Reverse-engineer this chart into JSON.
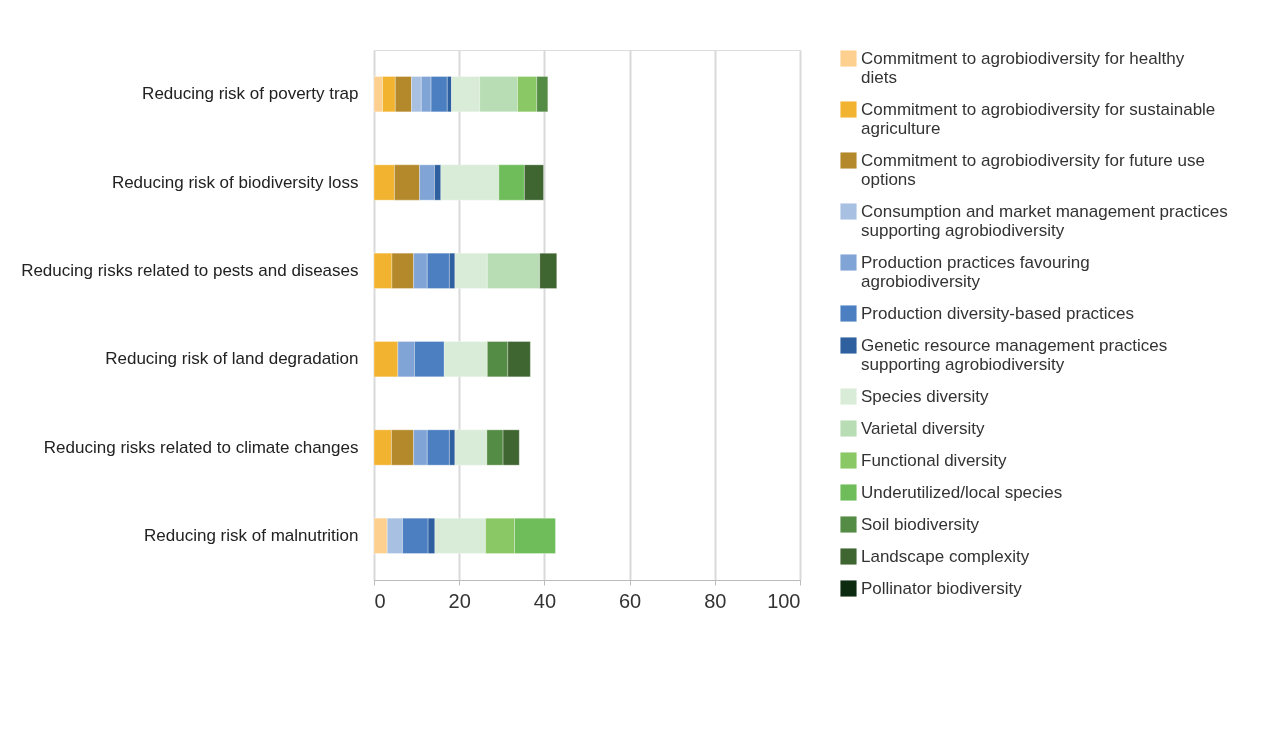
{
  "chart_data": {
    "type": "bar",
    "orientation": "horizontal",
    "stacked": true,
    "categories": [
      "Reducing risk of poverty trap",
      "Reducing risk of biodiversity loss",
      "Reducing risks related to pests and diseases",
      "Reducing risk of land degradation",
      "Reducing risks related to climate changes",
      "Reducing risk of malnutrition"
    ],
    "series": [
      {
        "name": "Commitment to agrobiodiversity for healthy diets",
        "color": "#fdd08f",
        "values": [
          2.0,
          null,
          null,
          null,
          null,
          3.1
        ]
      },
      {
        "name": "Commitment to agrobiodiversity for sustainable agriculture",
        "color": "#f2b430",
        "values": [
          3.0,
          4.8,
          4.2,
          5.6,
          4.1,
          null
        ]
      },
      {
        "name": "Commitment to agrobiodiversity for future use options",
        "color": "#b4892b",
        "values": [
          3.8,
          5.9,
          5.1,
          null,
          5.2,
          null
        ]
      },
      {
        "name": "Consumption and market management practices supporting agrobiodiversity",
        "color": "#a8c0e2",
        "values": [
          2.3,
          null,
          null,
          null,
          null,
          3.6
        ]
      },
      {
        "name": "Production practices favouring agrobiodiversity",
        "color": "#80a4d6",
        "values": [
          2.3,
          3.5,
          3.2,
          3.9,
          3.2,
          null
        ]
      },
      {
        "name": "Production diversity-based practices",
        "color": "#4b7fc1",
        "values": [
          3.8,
          null,
          5.2,
          7.0,
          5.2,
          6.0
        ]
      },
      {
        "name": "Genetic resource management practices supporting agrobiodiversity",
        "color": "#2e5f9e",
        "values": [
          1.0,
          1.5,
          1.3,
          null,
          1.3,
          1.6
        ]
      },
      {
        "name": "Species diversity",
        "color": "#d9ecd7",
        "values": [
          6.6,
          13.6,
          7.6,
          10.1,
          7.5,
          11.9
        ]
      },
      {
        "name": "Varietal diversity",
        "color": "#b8ddb5",
        "values": [
          8.9,
          null,
          12.3,
          null,
          null,
          null
        ]
      },
      {
        "name": "Functional diversity",
        "color": "#8ac765",
        "values": [
          4.5,
          null,
          null,
          null,
          null,
          6.8
        ]
      },
      {
        "name": "Underutilized/local species",
        "color": "#6fbd5a",
        "values": [
          null,
          6.0,
          null,
          null,
          null,
          9.6
        ]
      },
      {
        "name": "Soil biodiversity",
        "color": "#558c45",
        "values": [
          2.6,
          null,
          null,
          4.8,
          3.8,
          null
        ]
      },
      {
        "name": "Landscape complexity",
        "color": "#3f6531",
        "values": [
          null,
          4.5,
          4.0,
          5.3,
          3.8,
          null
        ]
      },
      {
        "name": "Pollinator biodiversity",
        "color": "#0b2a10",
        "values": [
          null,
          null,
          null,
          null,
          null,
          null
        ]
      }
    ],
    "xlim": [
      0,
      100
    ],
    "xticks": [
      0,
      20,
      40,
      60,
      80,
      100
    ],
    "grid": "x",
    "legend": "right"
  }
}
